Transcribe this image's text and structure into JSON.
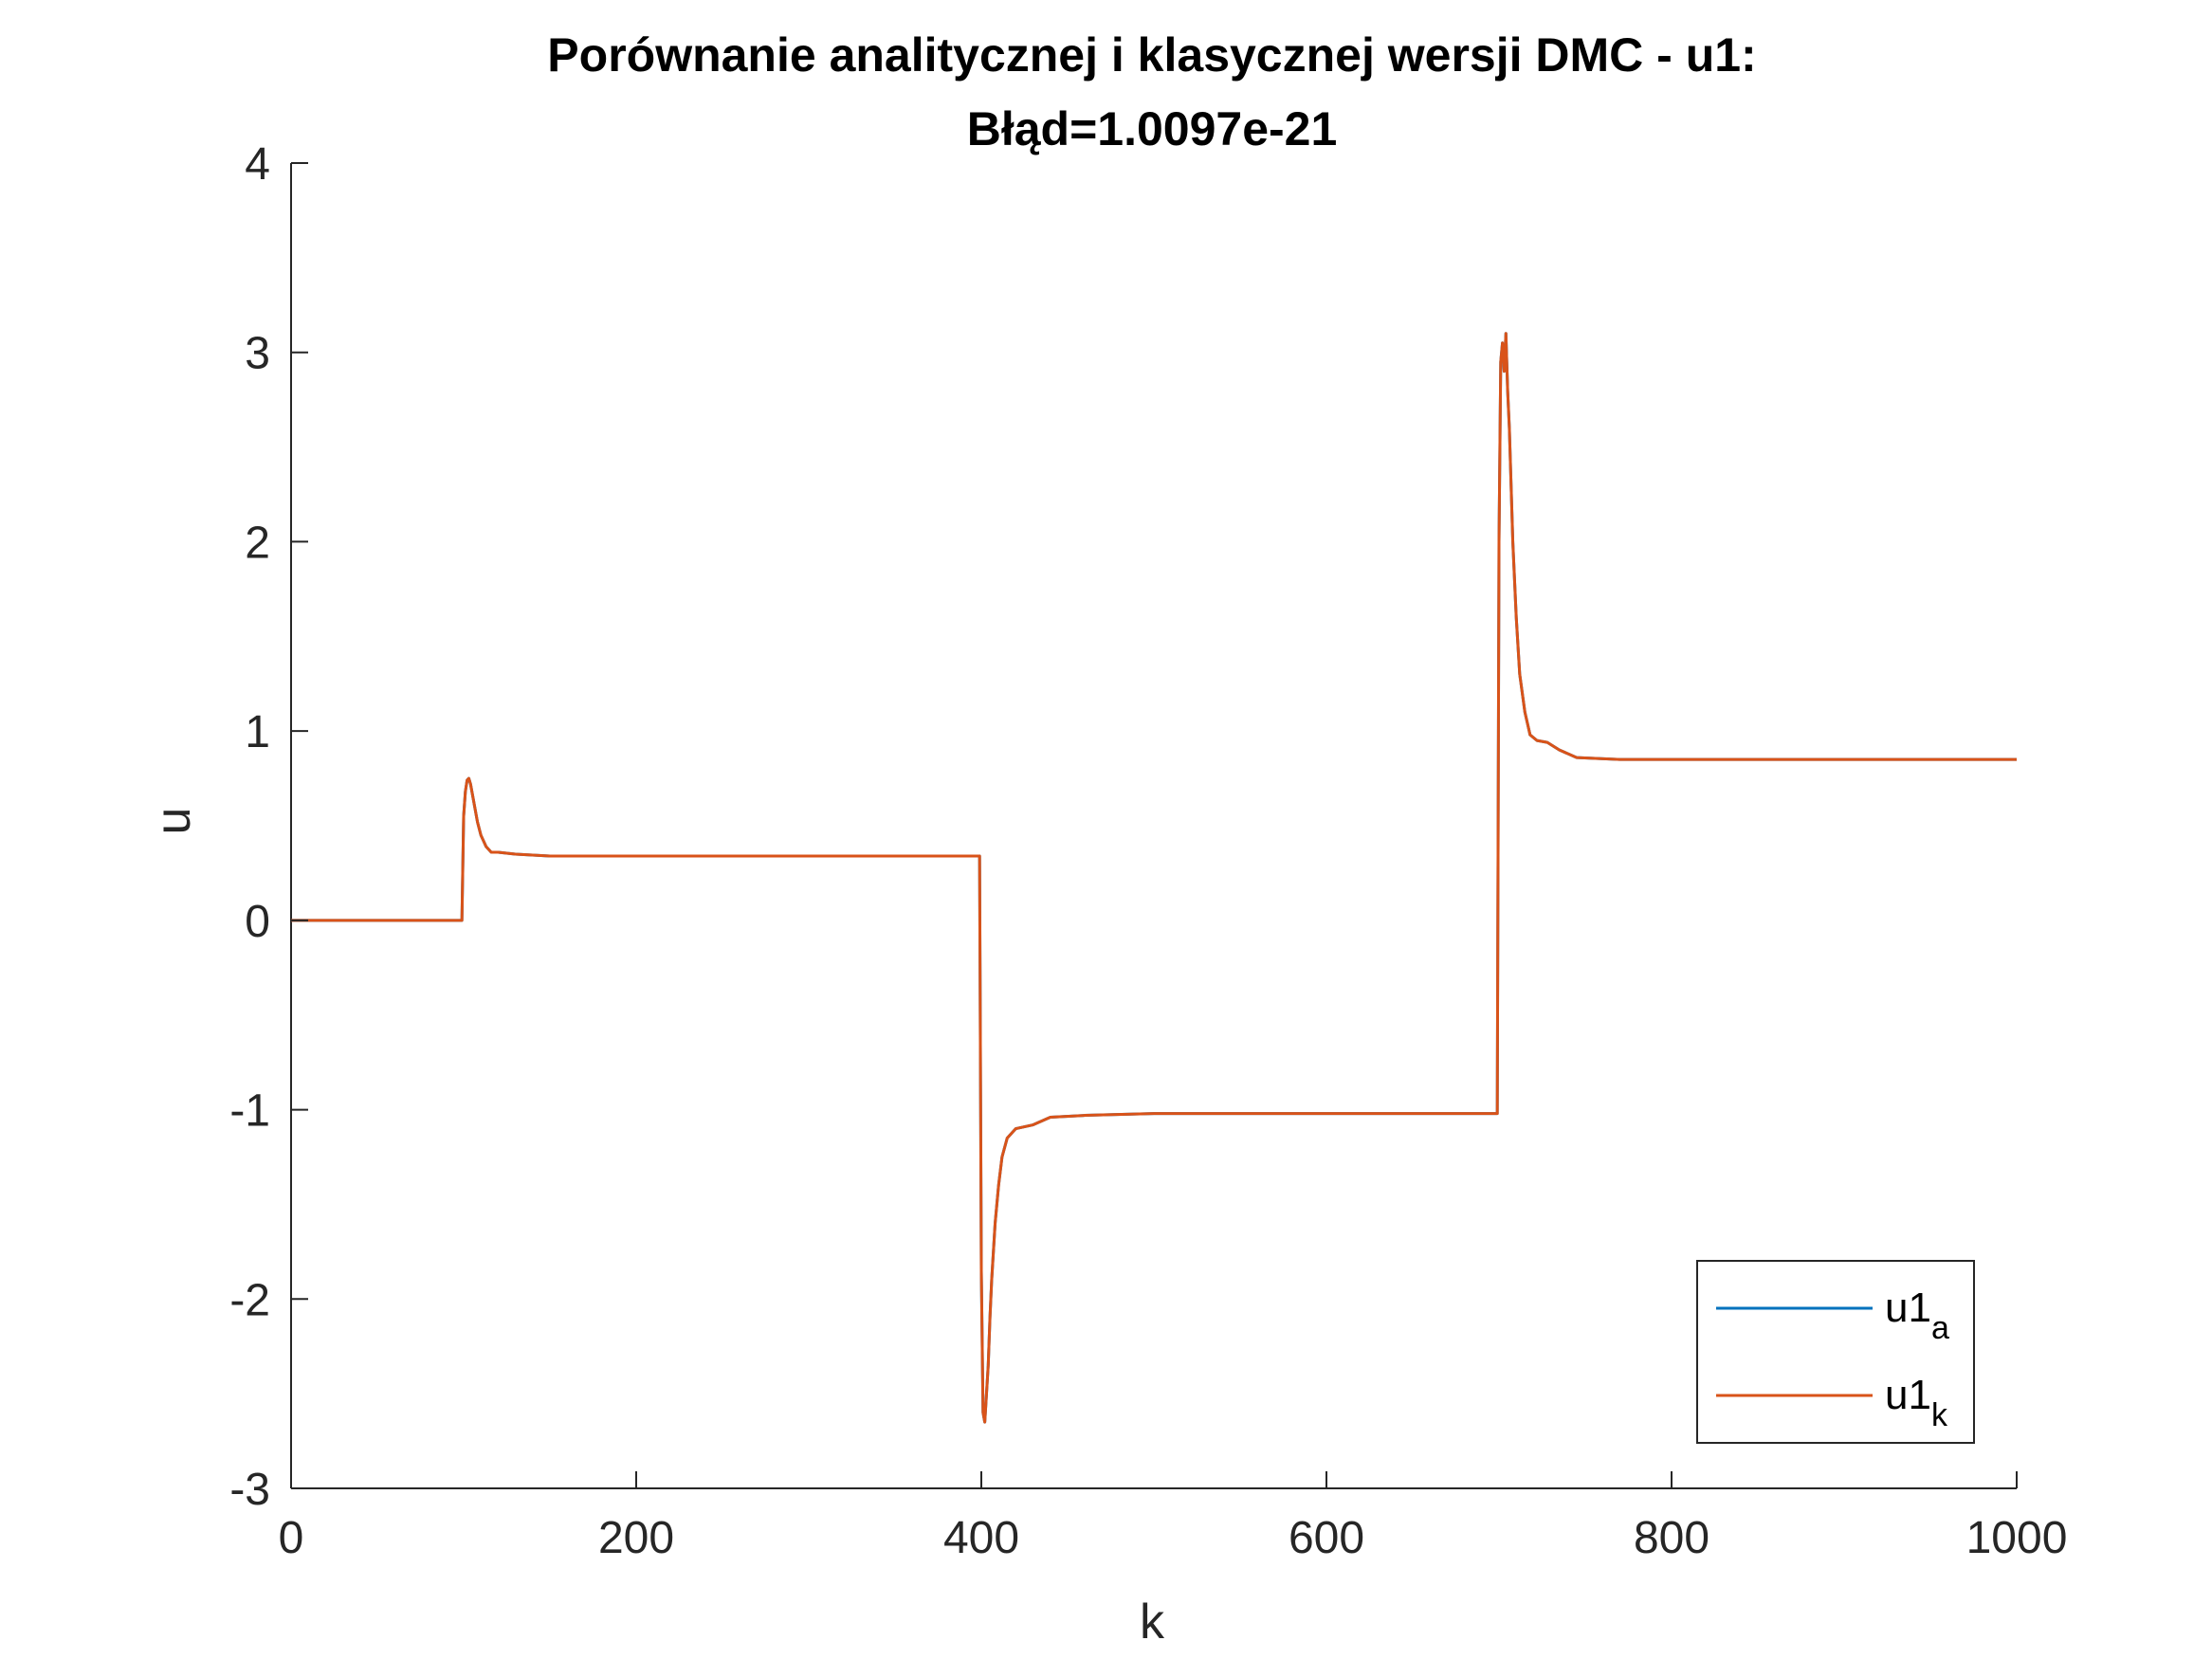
{
  "chart_data": {
    "type": "line",
    "title": "Porównanie analitycznej i klasycznej wersji DMC - u1:",
    "subtitle": "Błąd=1.0097e-21",
    "xlabel": "k",
    "ylabel": "u",
    "xlim": [
      0,
      1000
    ],
    "ylim": [
      -3,
      4
    ],
    "xticks": [
      0,
      200,
      400,
      600,
      800,
      1000
    ],
    "xtick_labels": [
      "0",
      "200",
      "400",
      "600",
      "800",
      "1000"
    ],
    "yticks": [
      -3,
      -2,
      -1,
      0,
      1,
      2,
      3,
      4
    ],
    "ytick_labels": [
      "-3",
      "-2",
      "-1",
      "0",
      "1",
      "2",
      "3",
      "4"
    ],
    "grid": false,
    "legend": {
      "position": "bottom-right",
      "entries": [
        {
          "base": "u1",
          "sub": "a"
        },
        {
          "base": "u1",
          "sub": "k"
        }
      ]
    },
    "series": [
      {
        "name": "u1_a",
        "color": "#0072BD",
        "x": [
          0,
          99,
          100,
          101,
          102,
          103,
          104,
          106,
          108,
          110,
          113,
          116,
          120,
          130,
          150,
          200,
          300,
          399,
          400,
          401,
          402,
          403,
          404,
          405,
          406,
          408,
          410,
          412,
          415,
          420,
          430,
          440,
          460,
          500,
          600,
          699,
          700,
          701,
          702,
          703,
          704,
          705,
          706,
          707,
          708,
          710,
          712,
          715,
          718,
          722,
          728,
          735,
          745,
          770,
          800,
          900,
          1000
        ],
        "y": [
          0,
          0,
          0.55,
          0.68,
          0.74,
          0.75,
          0.72,
          0.62,
          0.52,
          0.45,
          0.39,
          0.36,
          0.36,
          0.35,
          0.34,
          0.34,
          0.34,
          0.34,
          -1.85,
          -2.6,
          -2.65,
          -2.5,
          -2.35,
          -2.1,
          -1.9,
          -1.6,
          -1.4,
          -1.25,
          -1.15,
          -1.1,
          -1.08,
          -1.04,
          -1.03,
          -1.02,
          -1.02,
          -1.02,
          2.0,
          2.95,
          3.05,
          2.9,
          3.1,
          2.8,
          2.6,
          2.3,
          2.0,
          1.6,
          1.3,
          1.1,
          0.98,
          0.95,
          0.94,
          0.9,
          0.86,
          0.85,
          0.85,
          0.85,
          0.85
        ]
      },
      {
        "name": "u1_k",
        "color": "#D95319",
        "x": [
          0,
          99,
          100,
          101,
          102,
          103,
          104,
          106,
          108,
          110,
          113,
          116,
          120,
          130,
          150,
          200,
          300,
          399,
          400,
          401,
          402,
          403,
          404,
          405,
          406,
          408,
          410,
          412,
          415,
          420,
          430,
          440,
          460,
          500,
          600,
          699,
          700,
          701,
          702,
          703,
          704,
          705,
          706,
          707,
          708,
          710,
          712,
          715,
          718,
          722,
          728,
          735,
          745,
          770,
          800,
          900,
          1000
        ],
        "y": [
          0,
          0,
          0.55,
          0.68,
          0.74,
          0.75,
          0.72,
          0.62,
          0.52,
          0.45,
          0.39,
          0.36,
          0.36,
          0.35,
          0.34,
          0.34,
          0.34,
          0.34,
          -1.85,
          -2.6,
          -2.65,
          -2.5,
          -2.35,
          -2.1,
          -1.9,
          -1.6,
          -1.4,
          -1.25,
          -1.15,
          -1.1,
          -1.08,
          -1.04,
          -1.03,
          -1.02,
          -1.02,
          -1.02,
          2.0,
          2.95,
          3.05,
          2.9,
          3.1,
          2.8,
          2.6,
          2.3,
          2.0,
          1.6,
          1.3,
          1.1,
          0.98,
          0.95,
          0.94,
          0.9,
          0.86,
          0.85,
          0.85,
          0.85,
          0.85
        ]
      }
    ]
  },
  "colors": {
    "axis": "#262626",
    "legend_border": "#262626",
    "background": "#ffffff"
  }
}
